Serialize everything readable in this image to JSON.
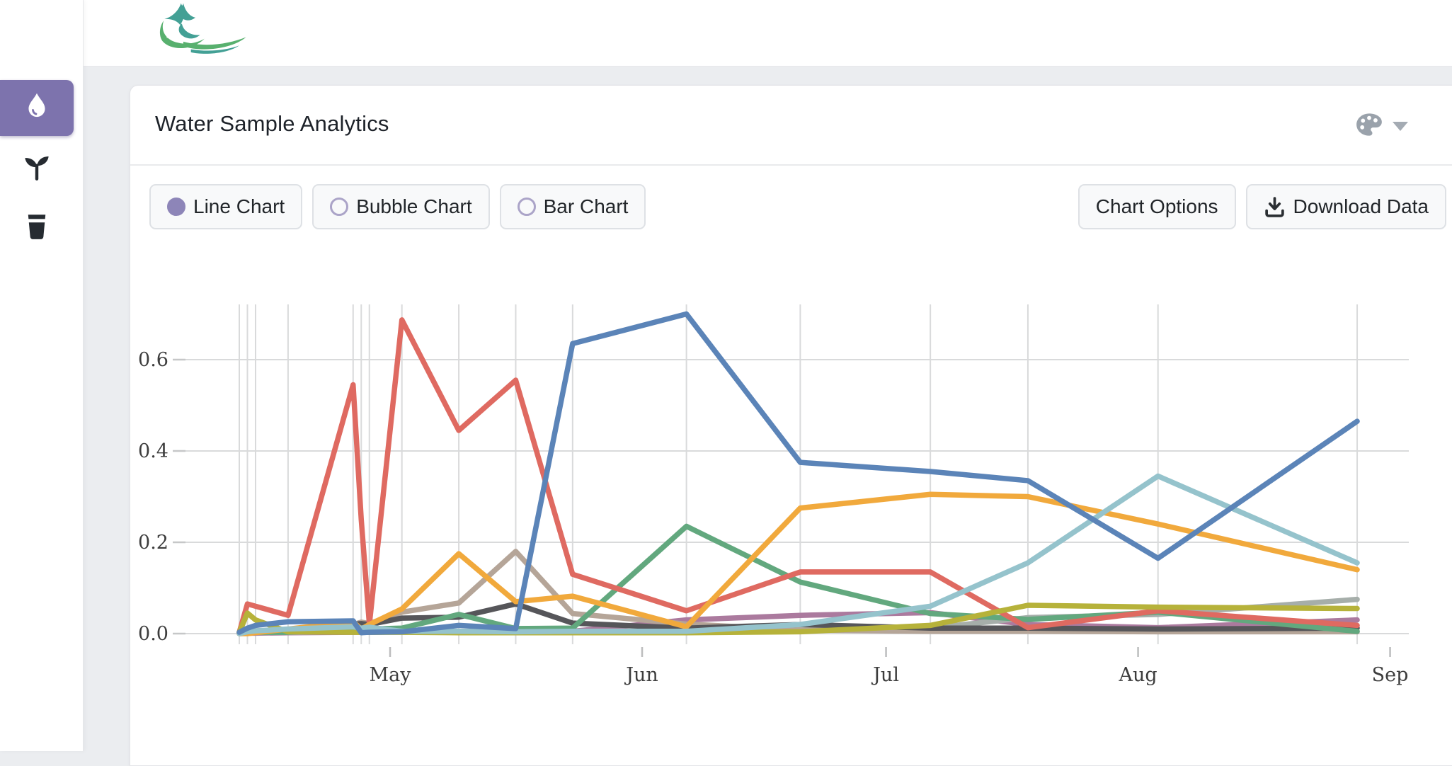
{
  "app": {
    "accent_purple": "#7d73ad",
    "radio_purple": "#8d85b8",
    "logo_teal": "#43a095",
    "logo_green": "#58b06e"
  },
  "sidebar": {
    "items": [
      {
        "icon": "droplet",
        "active": true
      },
      {
        "icon": "seedling",
        "active": false
      },
      {
        "icon": "water-glass",
        "active": false
      }
    ]
  },
  "card": {
    "title": "Water Sample Analytics",
    "chart_type_options": [
      {
        "label": "Line Chart",
        "selected": true
      },
      {
        "label": "Bubble Chart",
        "selected": false
      },
      {
        "label": "Bar Chart",
        "selected": false
      }
    ],
    "actions": {
      "chart_options_label": "Chart Options",
      "download_label": "Download Data"
    }
  },
  "chart_data": {
    "type": "line",
    "title": "",
    "xlabel": "",
    "ylabel": "",
    "ylim": [
      0,
      0.72
    ],
    "grid": "vertical lines at irregular sample dates, horizontal at y ticks",
    "legend": "none",
    "x_days": [
      0,
      1,
      2,
      6,
      14,
      15,
      16,
      20,
      27,
      34,
      41,
      55,
      69,
      85,
      97,
      113,
      137.5
    ],
    "x_dates": [
      "Apr 12",
      "Apr 13",
      "Apr 14",
      "Apr 18",
      "Apr 26",
      "Apr 27",
      "Apr 28",
      "May 2",
      "May 9",
      "May 16",
      "May 23",
      "Jun 6",
      "Jun 20",
      "Jul 7",
      "Jul 19",
      "Aug 3",
      "Aug 28"
    ],
    "y_axis": {
      "labels": [
        "0.0",
        "0.2",
        "0.4",
        "0.6"
      ],
      "values": [
        0,
        0.2,
        0.4,
        0.6
      ]
    },
    "x_axis": {
      "labels": [
        "May",
        "Jun",
        "Jul",
        "Aug",
        "Sep"
      ],
      "days": [
        18.55,
        49.55,
        79.55,
        110.55,
        141.55
      ]
    },
    "series": [
      {
        "color": "#ab7a9e",
        "values": [
          0.0,
          0.001,
          0.001,
          0.002,
          0.003,
          0.003,
          0.003,
          0.004,
          0.004,
          0.004,
          0.005,
          0.03,
          0.04,
          0.046,
          0.02,
          0.013,
          0.03
        ]
      },
      {
        "color": "#a6aeaa",
        "values": [
          0.0,
          0.002,
          0.002,
          0.003,
          0.004,
          0.004,
          0.004,
          0.005,
          0.005,
          0.005,
          0.005,
          0.006,
          0.008,
          0.012,
          0.035,
          0.042,
          0.075
        ]
      },
      {
        "color": "#b5a598",
        "values": [
          0.001,
          0.003,
          0.004,
          0.006,
          0.02,
          0.025,
          0.022,
          0.047,
          0.067,
          0.18,
          0.044,
          0.021,
          0.008,
          0.005,
          0.005,
          0.004,
          0.004
        ]
      },
      {
        "color": "#56565a",
        "values": [
          0.002,
          0.005,
          0.006,
          0.008,
          0.02,
          0.022,
          0.02,
          0.034,
          0.036,
          0.065,
          0.023,
          0.012,
          0.02,
          0.012,
          0.012,
          0.01,
          0.012
        ]
      },
      {
        "color": "#62a87e",
        "values": [
          0.0,
          0.002,
          0.003,
          0.003,
          0.01,
          0.012,
          0.01,
          0.012,
          0.042,
          0.011,
          0.012,
          0.235,
          0.113,
          0.044,
          0.031,
          0.047,
          0.005
        ]
      },
      {
        "color": "#df6a61",
        "values": [
          0.003,
          0.065,
          0.06,
          0.04,
          0.545,
          0.25,
          0.02,
          0.687,
          0.445,
          0.555,
          0.13,
          0.05,
          0.135,
          0.135,
          0.013,
          0.05,
          0.018
        ]
      },
      {
        "color": "#f1a93c",
        "values": [
          0.0,
          0.0,
          0.002,
          0.01,
          0.026,
          0.01,
          0.02,
          0.054,
          0.175,
          0.07,
          0.082,
          0.015,
          0.275,
          0.305,
          0.3,
          0.24,
          0.14
        ]
      },
      {
        "color": "#b6b23a",
        "values": [
          0.003,
          0.045,
          0.03,
          0.004,
          0.003,
          0.003,
          0.003,
          0.003,
          0.002,
          0.002,
          0.002,
          0.002,
          0.004,
          0.018,
          0.062,
          0.058,
          0.055
        ]
      },
      {
        "color": "#95c3cc",
        "values": [
          0.0,
          0.004,
          0.006,
          0.01,
          0.015,
          0.012,
          0.014,
          0.005,
          0.005,
          0.004,
          0.005,
          0.005,
          0.02,
          0.06,
          0.155,
          0.345,
          0.155
        ]
      },
      {
        "color": "#5b84b8",
        "values": [
          0.003,
          0.012,
          0.018,
          0.026,
          0.028,
          0.002,
          0.003,
          0.004,
          0.018,
          0.011,
          0.635,
          0.7,
          0.375,
          0.355,
          0.335,
          0.165,
          0.465
        ]
      }
    ]
  }
}
